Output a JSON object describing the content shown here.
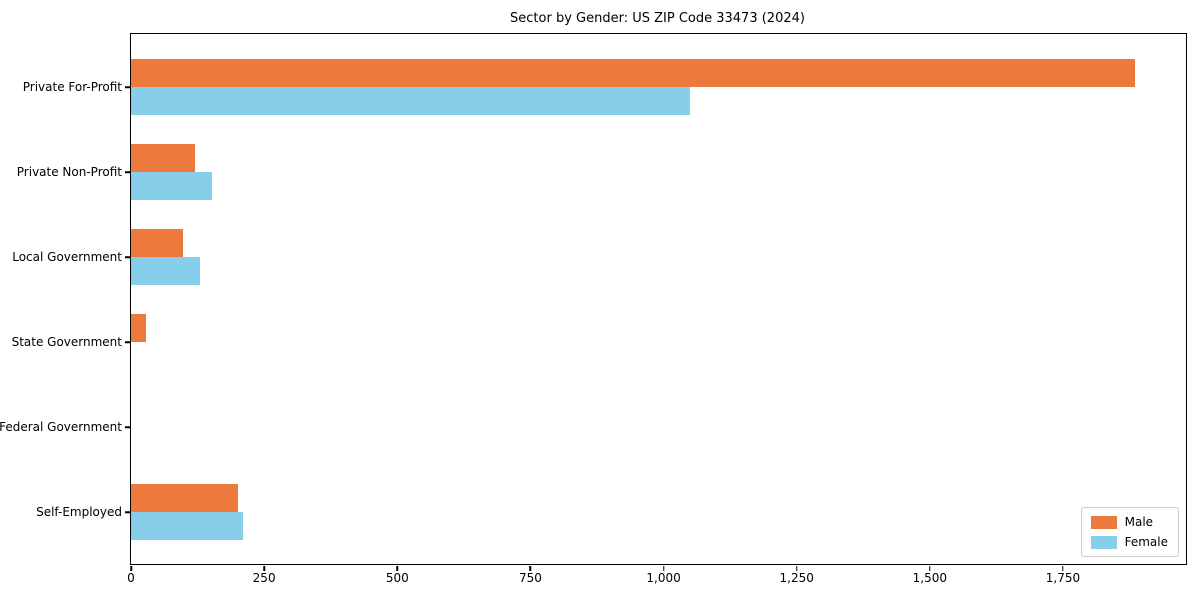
{
  "title": "Sector by Gender: US ZIP Code 33473 (2024)",
  "chart_data": {
    "type": "bar",
    "orientation": "horizontal",
    "title": "Sector by Gender: US ZIP Code 33473 (2024)",
    "categories": [
      "Private For-Profit",
      "Private Non-Profit",
      "Local Government",
      "State Government",
      "Federal Government",
      "Self-Employed"
    ],
    "series": [
      {
        "name": "Male",
        "color": "#eb7a3c",
        "values": [
          1885,
          120,
          98,
          29,
          0,
          200
        ]
      },
      {
        "name": "Female",
        "color": "#87ceeb",
        "values": [
          1050,
          152,
          130,
          0,
          0,
          210
        ]
      }
    ],
    "xlabel": "",
    "ylabel": "",
    "xlim": [
      0,
      1981
    ],
    "x_ticks": [
      0,
      250,
      500,
      750,
      1000,
      1250,
      1500,
      1750
    ],
    "x_tick_labels": [
      "0",
      "250",
      "500",
      "750",
      "1,000",
      "1,250",
      "1,500",
      "1,750"
    ],
    "grid": false,
    "legend_position": "lower right",
    "frame": "full-box"
  },
  "legend": {
    "items": [
      {
        "label": "Male",
        "color": "#eb7a3c"
      },
      {
        "label": "Female",
        "color": "#87ceeb"
      }
    ]
  }
}
